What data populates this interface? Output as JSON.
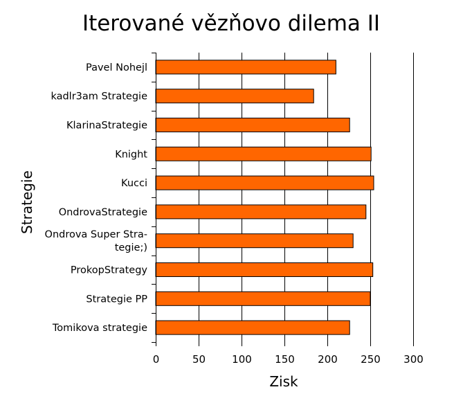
{
  "chart_data": {
    "type": "bar",
    "orientation": "horizontal",
    "title": "Iterované vězňovo dilema II",
    "xlabel": "Zisk",
    "ylabel": "Strategie",
    "xlim": [
      0,
      300
    ],
    "xticks": [
      "0",
      "50",
      "100",
      "150",
      "200",
      "250",
      "300"
    ],
    "grid": true,
    "bar_color": "#ff6600",
    "categories": [
      [
        "Pavel Nohejl"
      ],
      [
        "kadlr3am Strategie"
      ],
      [
        "KlarinaStrategie"
      ],
      [
        "Knight"
      ],
      [
        "Kucci"
      ],
      [
        "OndrovaStrategie"
      ],
      [
        "Ondrova Super Stra-",
        "tegie;)"
      ],
      [
        "ProkopStrategy"
      ],
      [
        "Strategie PP"
      ],
      [
        "Tomikova strategie"
      ]
    ],
    "values": [
      210,
      184,
      226,
      251,
      254,
      245,
      230,
      253,
      250,
      226
    ]
  }
}
